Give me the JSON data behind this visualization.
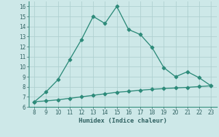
{
  "x": [
    8,
    9,
    10,
    11,
    12,
    13,
    14,
    15,
    16,
    17,
    18,
    19,
    20,
    21,
    22,
    23
  ],
  "y_main": [
    6.5,
    7.5,
    8.7,
    10.7,
    12.7,
    15.0,
    14.3,
    16.0,
    13.7,
    13.2,
    11.9,
    9.9,
    9.0,
    9.5,
    8.9,
    8.1
  ],
  "y_base": [
    6.5,
    6.6,
    6.7,
    6.85,
    7.0,
    7.15,
    7.3,
    7.45,
    7.55,
    7.65,
    7.75,
    7.82,
    7.88,
    7.94,
    8.02,
    8.1
  ],
  "xlabel": "Humidex (Indice chaleur)",
  "xlim": [
    7.5,
    23.5
  ],
  "ylim": [
    6.0,
    16.5
  ],
  "yticks": [
    6,
    7,
    8,
    9,
    10,
    11,
    12,
    13,
    14,
    15,
    16
  ],
  "xticks": [
    8,
    9,
    10,
    11,
    12,
    13,
    14,
    15,
    16,
    17,
    18,
    19,
    20,
    21,
    22,
    23
  ],
  "line_color": "#2e8b7a",
  "bg_color": "#cde8e8",
  "grid_color": "#aed0d0",
  "marker": "D",
  "marker_size": 2.5,
  "line_width": 1.0
}
